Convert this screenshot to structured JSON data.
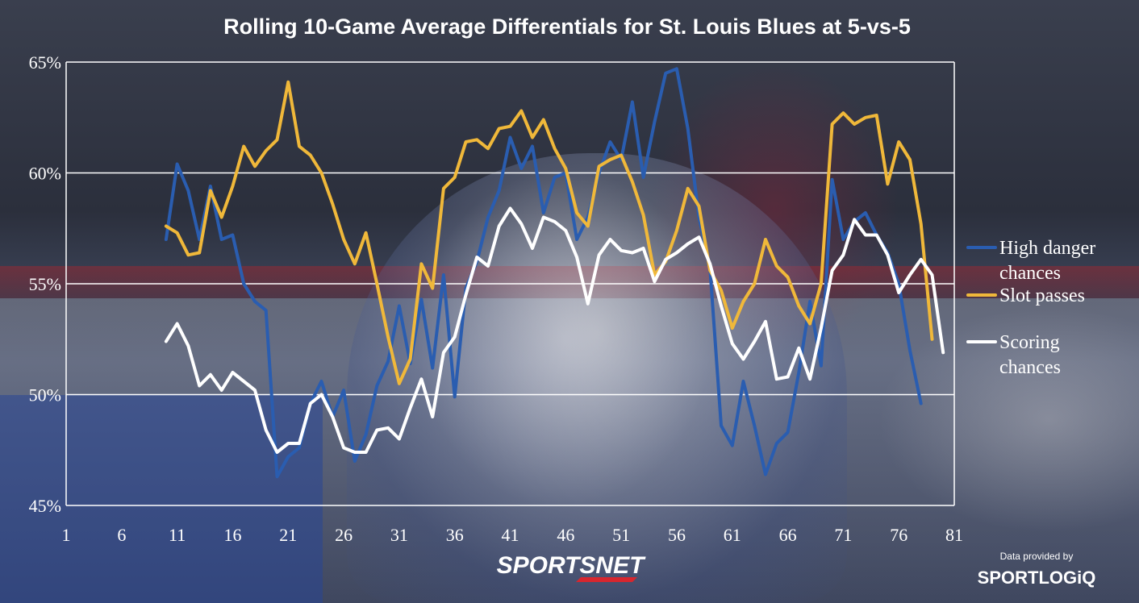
{
  "chart_data": {
    "type": "line",
    "title": "Rolling 10-Game Average Differentials for St. Louis Blues at 5-vs-5",
    "xlabel": "",
    "ylabel": "",
    "xlim": [
      1,
      81
    ],
    "ylim": [
      45,
      65
    ],
    "x_ticks": [
      1,
      6,
      11,
      16,
      21,
      26,
      31,
      36,
      41,
      46,
      51,
      56,
      61,
      66,
      71,
      76,
      81
    ],
    "y_ticks": [
      45,
      50,
      55,
      60,
      65
    ],
    "y_tick_labels": [
      "45%",
      "50%",
      "55%",
      "60%",
      "65%"
    ],
    "grid": "horizontal",
    "legend": "right",
    "series": [
      {
        "name": "High danger chances",
        "color": "#2a5db0",
        "start_game": 10,
        "values": [
          57.0,
          60.4,
          59.2,
          57.0,
          59.4,
          57.0,
          57.2,
          55.0,
          54.2,
          53.8,
          46.3,
          47.2,
          47.6,
          49.6,
          50.6,
          49.0,
          50.2,
          47.0,
          48.2,
          50.4,
          51.5,
          54.0,
          51.4,
          54.3,
          51.2,
          55.4,
          49.9,
          54.8,
          56.0,
          58.0,
          59.2,
          61.6,
          60.2,
          61.2,
          58.2,
          59.8,
          60.0,
          57.0,
          58.0,
          60.0,
          61.4,
          60.6,
          63.2,
          59.8,
          62.3,
          64.5,
          64.7,
          62.0,
          58.0,
          55.7,
          48.6,
          47.7,
          50.6,
          48.6,
          46.4,
          47.8,
          48.3,
          51.0,
          54.2,
          51.3,
          59.7,
          57.0,
          57.8,
          58.2,
          57.2,
          56.4,
          55.0,
          52.0,
          49.6
        ]
      },
      {
        "name": "Slot passes",
        "color": "#f0b83a",
        "start_game": 10,
        "values": [
          57.6,
          57.3,
          56.3,
          56.4,
          59.2,
          58.0,
          59.4,
          61.2,
          60.3,
          61.0,
          61.5,
          64.1,
          61.2,
          60.8,
          60.0,
          58.6,
          57.0,
          55.9,
          57.3,
          55.0,
          52.6,
          50.5,
          51.6,
          55.9,
          54.8,
          59.3,
          59.8,
          61.4,
          61.5,
          61.1,
          62.0,
          62.1,
          62.8,
          61.6,
          62.4,
          61.1,
          60.2,
          58.2,
          57.6,
          60.3,
          60.6,
          60.8,
          59.6,
          58.1,
          55.4,
          56.0,
          57.4,
          59.3,
          58.5,
          55.6,
          54.7,
          53.0,
          54.2,
          55.0,
          57.0,
          55.8,
          55.3,
          54.0,
          53.2,
          55.0,
          62.2,
          62.7,
          62.2,
          62.5,
          62.6,
          59.5,
          61.4,
          60.6,
          57.7,
          52.5
        ]
      },
      {
        "name": "Scoring chances",
        "color": "#ffffff",
        "start_game": 10,
        "values": [
          52.4,
          53.2,
          52.2,
          50.4,
          50.9,
          50.2,
          51.0,
          50.6,
          50.2,
          48.4,
          47.4,
          47.8,
          47.8,
          49.6,
          50.0,
          49.0,
          47.6,
          47.4,
          47.4,
          48.4,
          48.5,
          48.0,
          49.4,
          50.7,
          49.0,
          51.9,
          52.6,
          54.5,
          56.2,
          55.8,
          57.6,
          58.4,
          57.7,
          56.6,
          58.0,
          57.8,
          57.4,
          56.2,
          54.1,
          56.3,
          57.0,
          56.5,
          56.4,
          56.6,
          55.1,
          56.1,
          56.4,
          56.8,
          57.1,
          55.9,
          54.0,
          52.3,
          51.6,
          52.4,
          53.3,
          50.7,
          50.8,
          52.1,
          50.7,
          53.0,
          55.6,
          56.3,
          57.9,
          57.2,
          57.2,
          56.3,
          54.6,
          55.4,
          56.1,
          55.4,
          51.9
        ]
      }
    ]
  },
  "legend": {
    "items": [
      {
        "lines": [
          "High danger",
          "chances"
        ]
      },
      {
        "lines": [
          "Slot passes"
        ]
      },
      {
        "lines": [
          "Scoring",
          "chances"
        ]
      }
    ]
  },
  "branding": {
    "network": "SPORTSNET",
    "credit_label": "Data provided by",
    "data_provider": "SPORTLOGiQ"
  }
}
